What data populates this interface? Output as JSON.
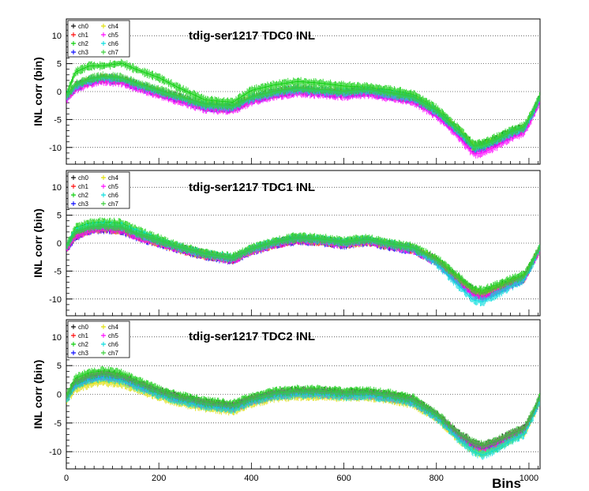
{
  "figure": {
    "x_axis_label": "Bins",
    "y_axis_label": "INL corr (bin)"
  },
  "chart_data": [
    {
      "type": "line",
      "title": "tdig-ser1217 TDC0 INL",
      "xlabel": "",
      "ylabel": "INL corr (bin)",
      "xlim": [
        0,
        1024
      ],
      "ylim": [
        -13,
        13
      ],
      "yticks": [
        -10,
        -5,
        0,
        5,
        10
      ],
      "grid": "horizontal dotted",
      "legend_position": "top-left",
      "x": [
        0,
        20,
        50,
        80,
        120,
        150,
        200,
        240,
        300,
        360,
        400,
        450,
        500,
        550,
        600,
        650,
        700,
        750,
        800,
        850,
        880,
        900,
        930,
        960,
        990,
        1010,
        1024
      ],
      "series": [
        {
          "name": "ch0",
          "color": "#000000",
          "values": [
            -1,
            1,
            2,
            2.5,
            2.2,
            1.3,
            0,
            -1,
            -2.5,
            -2.8,
            -1.2,
            -0.2,
            0.4,
            0.1,
            -0.2,
            0.2,
            -0.5,
            -1.2,
            -3.5,
            -7,
            -9.8,
            -9.6,
            -8.6,
            -7.3,
            -6.5,
            -3.5,
            -1
          ]
        },
        {
          "name": "ch1",
          "color": "#ff0000",
          "values": [
            -1.2,
            0.8,
            1.8,
            2.3,
            2,
            1.1,
            -0.2,
            -1.2,
            -2.7,
            -3,
            -1.4,
            -0.4,
            0.2,
            -0.1,
            -0.4,
            0,
            -0.7,
            -1.4,
            -3.8,
            -7.5,
            -10.3,
            -10.1,
            -9,
            -7.7,
            -6.8,
            -3.8,
            -1.2
          ]
        },
        {
          "name": "ch2",
          "color": "#00cc00",
          "values": [
            -0.5,
            3.5,
            4.6,
            4.6,
            5.1,
            4,
            2.5,
            0.8,
            -1.5,
            -1.9,
            0.2,
            1.2,
            1.8,
            1.5,
            1,
            0.8,
            0.3,
            -0.5,
            -3,
            -6.8,
            -9.5,
            -9.3,
            -8.2,
            -7,
            -6.2,
            -3.2,
            -0.5
          ]
        },
        {
          "name": "ch3",
          "color": "#0000ff",
          "values": [
            -1.3,
            0.7,
            1.7,
            2.2,
            1.9,
            1,
            -0.3,
            -1.3,
            -2.8,
            -3.1,
            -1.5,
            -0.5,
            0.1,
            -0.2,
            -0.5,
            -0.1,
            -0.8,
            -1.5,
            -3.9,
            -7.6,
            -10.4,
            -10.2,
            -9.1,
            -7.8,
            -6.9,
            -3.9,
            -1.3
          ]
        },
        {
          "name": "ch4",
          "color": "#dddd00",
          "values": [
            -1.1,
            0.9,
            1.9,
            2.4,
            2.1,
            1.2,
            -0.1,
            -1.1,
            -2.6,
            -2.9,
            -1.3,
            -0.3,
            0.3,
            0,
            -0.3,
            0.1,
            -0.6,
            -1.3,
            -3.6,
            -7.2,
            -10,
            -9.8,
            -8.8,
            -7.5,
            -6.6,
            -3.6,
            -1.1
          ]
        },
        {
          "name": "ch5",
          "color": "#ff00ff",
          "values": [
            -1.6,
            0.4,
            1.4,
            1.9,
            1.6,
            0.7,
            -0.6,
            -1.6,
            -3.1,
            -3.4,
            -1.8,
            -0.8,
            -0.2,
            -0.5,
            -0.8,
            -0.4,
            -1.1,
            -1.8,
            -4.3,
            -8.3,
            -11.2,
            -11,
            -9.8,
            -8.3,
            -7.3,
            -4.3,
            -1.6
          ]
        },
        {
          "name": "ch6",
          "color": "#00dddd",
          "values": [
            -1,
            1,
            2,
            2.5,
            2.2,
            1.3,
            0,
            -1,
            -2.5,
            -2.8,
            -1.2,
            -0.2,
            0.4,
            0.1,
            -0.2,
            0.2,
            -0.5,
            -1.2,
            -3.6,
            -7.3,
            -10.1,
            -9.9,
            -8.8,
            -7.5,
            -6.6,
            -3.6,
            -1
          ]
        },
        {
          "name": "ch7",
          "color": "#33cc33",
          "values": [
            -0.8,
            1.3,
            2.3,
            2.8,
            2.5,
            1.6,
            0.3,
            -0.7,
            -2.2,
            -2.5,
            -0.9,
            0.1,
            0.7,
            0.4,
            0.1,
            0.5,
            -0.2,
            -0.9,
            -3.3,
            -7,
            -9.7,
            -9.5,
            -8.5,
            -7.2,
            -6.3,
            -3.3,
            -0.8
          ]
        }
      ]
    },
    {
      "type": "line",
      "title": "tdig-ser1217 TDC1 INL",
      "xlabel": "",
      "ylabel": "INL corr (bin)",
      "xlim": [
        0,
        1024
      ],
      "ylim": [
        -13,
        13
      ],
      "yticks": [
        -10,
        -5,
        0,
        5,
        10
      ],
      "grid": "horizontal dotted",
      "legend_position": "top-left",
      "x": [
        0,
        20,
        50,
        80,
        120,
        150,
        200,
        240,
        300,
        360,
        400,
        450,
        500,
        550,
        600,
        650,
        700,
        750,
        800,
        850,
        880,
        900,
        930,
        960,
        990,
        1010,
        1024
      ],
      "series": [
        {
          "name": "ch0",
          "color": "#000000",
          "values": [
            -0.8,
            1.5,
            2.5,
            2.8,
            2.5,
            1.5,
            0.2,
            -0.8,
            -2,
            -2.8,
            -1.2,
            0,
            0.8,
            0.5,
            0,
            0.5,
            -0.3,
            -1,
            -3,
            -6.5,
            -8.5,
            -9,
            -8,
            -7,
            -6,
            -3,
            -0.8
          ]
        },
        {
          "name": "ch1",
          "color": "#ff0000",
          "values": [
            -1,
            1.3,
            2.3,
            2.6,
            2.3,
            1.3,
            0,
            -1,
            -2.2,
            -3,
            -1.4,
            -0.2,
            0.6,
            0.3,
            -0.2,
            0.3,
            -0.5,
            -1.2,
            -3.3,
            -7,
            -9,
            -9.5,
            -8.5,
            -7.3,
            -6.3,
            -3.2,
            -1
          ]
        },
        {
          "name": "ch2",
          "color": "#00cc00",
          "values": [
            -0.6,
            2.8,
            3.6,
            3.8,
            3.6,
            2.4,
            0.8,
            -0.5,
            -1.8,
            -2.5,
            -0.9,
            0.3,
            1.2,
            0.9,
            0.4,
            0.8,
            0,
            -0.7,
            -2.7,
            -6.2,
            -8.2,
            -8.5,
            -7.5,
            -6.5,
            -5.6,
            -2.8,
            -0.6
          ]
        },
        {
          "name": "ch3",
          "color": "#0000ff",
          "values": [
            -1.1,
            1.2,
            2.2,
            2.5,
            2.2,
            1.2,
            -0.1,
            -1.1,
            -2.3,
            -3.1,
            -1.5,
            -0.3,
            0.5,
            0.2,
            -0.3,
            0.2,
            -0.6,
            -1.3,
            -3.4,
            -7.1,
            -9.1,
            -9.6,
            -8.6,
            -7.4,
            -6.4,
            -3.3,
            -1.1
          ]
        },
        {
          "name": "ch4",
          "color": "#dddd00",
          "values": [
            -0.9,
            1.4,
            2.4,
            2.7,
            2.4,
            1.4,
            0.1,
            -0.9,
            -2.1,
            -2.9,
            -1.3,
            -0.1,
            0.7,
            0.4,
            -0.1,
            0.4,
            -0.4,
            -1.1,
            -3.2,
            -6.8,
            -8.8,
            -9.3,
            -8.3,
            -7.2,
            -6.2,
            -3.1,
            -0.9
          ]
        },
        {
          "name": "ch5",
          "color": "#ff00ff",
          "values": [
            -1,
            1.3,
            2.3,
            2.6,
            2.3,
            1.3,
            0,
            -1,
            -2.2,
            -3,
            -1.4,
            -0.2,
            0.6,
            0.3,
            -0.2,
            0.3,
            -0.5,
            -1.2,
            -3.4,
            -7.2,
            -9.3,
            -9.8,
            -8.7,
            -7.5,
            -6.4,
            -3.3,
            -1
          ]
        },
        {
          "name": "ch6",
          "color": "#00dddd",
          "values": [
            -0.7,
            2.2,
            3,
            3.2,
            3,
            1.9,
            0.4,
            -0.7,
            -2,
            -2.7,
            -1.1,
            0.1,
            0.9,
            0.6,
            0.1,
            0.6,
            -0.2,
            -1,
            -3.6,
            -7.8,
            -10.2,
            -10.5,
            -9.2,
            -7.8,
            -6.5,
            -3.3,
            -0.7
          ]
        },
        {
          "name": "ch7",
          "color": "#33cc33",
          "values": [
            -0.6,
            2,
            2.9,
            3.1,
            2.9,
            1.8,
            0.5,
            -0.6,
            -1.9,
            -2.6,
            -1,
            0.2,
            1,
            0.7,
            0.2,
            0.7,
            -0.1,
            -0.8,
            -2.9,
            -6.4,
            -8.4,
            -8.8,
            -7.8,
            -6.8,
            -5.8,
            -2.9,
            -0.6
          ]
        }
      ]
    },
    {
      "type": "line",
      "title": "tdig-ser1217 TDC2 INL",
      "xlabel": "Bins",
      "ylabel": "INL corr (bin)",
      "xlim": [
        0,
        1024
      ],
      "ylim": [
        -13,
        13
      ],
      "yticks": [
        -10,
        -5,
        0,
        5,
        10
      ],
      "xticks": [
        0,
        200,
        400,
        600,
        800,
        1000
      ],
      "grid": "horizontal dotted",
      "legend_position": "top-left",
      "x": [
        0,
        20,
        50,
        80,
        120,
        150,
        200,
        240,
        300,
        360,
        400,
        450,
        500,
        550,
        600,
        650,
        700,
        750,
        800,
        850,
        880,
        900,
        930,
        960,
        990,
        1010,
        1024
      ],
      "series": [
        {
          "name": "ch0",
          "color": "#000000",
          "values": [
            -0.5,
            2,
            3,
            3.5,
            3,
            2,
            0.5,
            -0.5,
            -1.5,
            -2,
            -0.8,
            0.2,
            0.5,
            0.5,
            0.2,
            0.3,
            -0.2,
            -1,
            -3.5,
            -7,
            -8.5,
            -9,
            -8.2,
            -7,
            -6,
            -3,
            -0.5
          ]
        },
        {
          "name": "ch1",
          "color": "#ff0000",
          "values": [
            -0.8,
            1.7,
            2.7,
            3.2,
            2.7,
            1.7,
            0.2,
            -0.8,
            -1.8,
            -2.3,
            -1.1,
            -0.1,
            0.2,
            0.2,
            -0.1,
            0,
            -0.5,
            -1.3,
            -3.8,
            -7.4,
            -8.9,
            -9.4,
            -8.6,
            -7.3,
            -6.3,
            -3.3,
            -0.8
          ]
        },
        {
          "name": "ch2",
          "color": "#00cc00",
          "values": [
            -0.3,
            2.8,
            3.8,
            4.1,
            3.6,
            2.5,
            0.8,
            -0.2,
            -1.2,
            -1.7,
            -0.5,
            0.5,
            0.8,
            0.8,
            0.5,
            0.6,
            0.1,
            -0.7,
            -3.5,
            -7.5,
            -9.5,
            -10.2,
            -9.3,
            -7.8,
            -6.5,
            -3.2,
            -0.3
          ]
        },
        {
          "name": "ch3",
          "color": "#0000ff",
          "values": [
            -0.9,
            1.6,
            2.6,
            3.1,
            2.6,
            1.6,
            0.1,
            -0.9,
            -1.9,
            -2.4,
            -1.2,
            -0.2,
            0.1,
            0.1,
            -0.2,
            -0.1,
            -0.6,
            -1.4,
            -3.9,
            -7.5,
            -9,
            -9.5,
            -8.7,
            -7.4,
            -6.4,
            -3.4,
            -0.9
          ]
        },
        {
          "name": "ch4",
          "color": "#dddd00",
          "values": [
            -1.3,
            1,
            1.8,
            2.2,
            1.8,
            1,
            -0.4,
            -1.4,
            -2.4,
            -2.9,
            -1.6,
            -0.6,
            -0.3,
            -0.3,
            -0.5,
            -0.4,
            -0.9,
            -1.7,
            -4.2,
            -8,
            -9.8,
            -10.3,
            -9.3,
            -7.9,
            -6.7,
            -3.6,
            -1.3
          ]
        },
        {
          "name": "ch5",
          "color": "#ff00ff",
          "values": [
            -0.7,
            1.9,
            2.9,
            3.3,
            2.8,
            1.8,
            0.3,
            -0.7,
            -1.7,
            -2.2,
            -1,
            0,
            0.3,
            0.3,
            0,
            0.1,
            -0.4,
            -1.2,
            -3.7,
            -7.3,
            -8.8,
            -9.3,
            -8.5,
            -7.2,
            -6.2,
            -3.2,
            -0.7
          ]
        },
        {
          "name": "ch6",
          "color": "#00dddd",
          "values": [
            -1,
            1.5,
            2.5,
            2.9,
            2.4,
            1.4,
            -0.1,
            -1.1,
            -2.1,
            -2.6,
            -1.3,
            -0.3,
            0,
            0,
            -0.3,
            -0.2,
            -0.7,
            -1.5,
            -4,
            -8,
            -10,
            -10.6,
            -9.6,
            -8.1,
            -6.9,
            -3.7,
            -1
          ]
        },
        {
          "name": "ch7",
          "color": "#33cc33",
          "values": [
            -0.4,
            2.3,
            3.3,
            3.7,
            3.2,
            2.2,
            0.6,
            -0.4,
            -1.4,
            -1.9,
            -0.7,
            0.3,
            0.6,
            0.6,
            0.3,
            0.4,
            -0.1,
            -0.9,
            -3.4,
            -6.9,
            -8.4,
            -8.9,
            -8.1,
            -6.9,
            -5.9,
            -2.9,
            -0.4
          ]
        }
      ]
    }
  ]
}
